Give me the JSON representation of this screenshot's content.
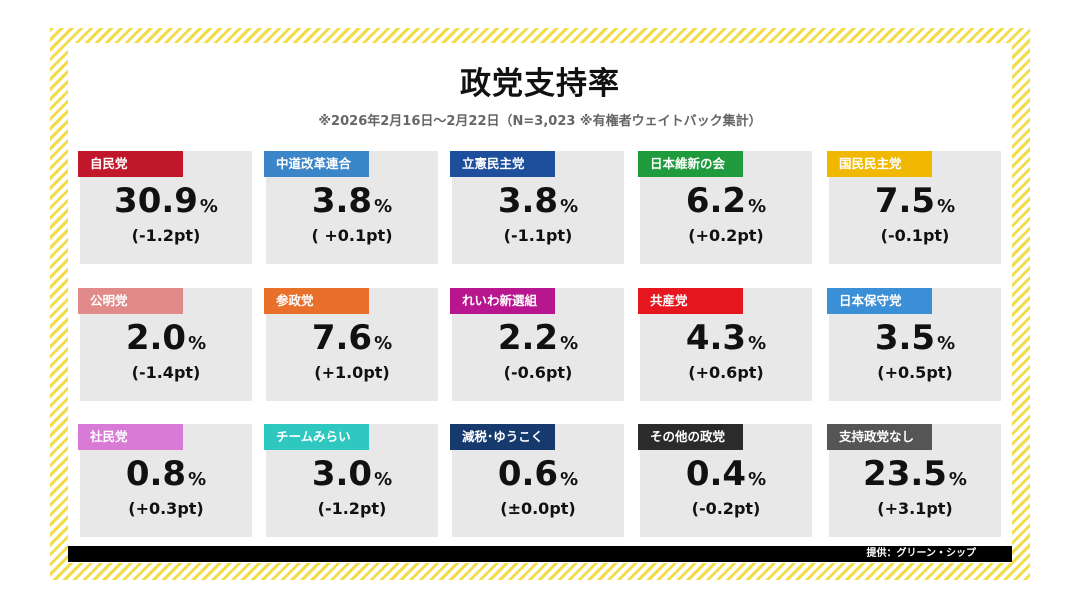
{
  "chart_data": {
    "type": "table",
    "title": "政党支持率",
    "subtitle": "※2026年2月16日～2月22日（N=3,023 ※有権者ウェイトバック集計）",
    "unit": "%",
    "entries": [
      {
        "party": "自民党",
        "value": 30.9,
        "value_text": "30.9",
        "change": "(-1.2pt)",
        "color": "#c0172a"
      },
      {
        "party": "中道改革連合",
        "value": 3.8,
        "value_text": "3.8",
        "change": "( +0.1pt)",
        "color": "#3a86c8"
      },
      {
        "party": "立憲民主党",
        "value": 3.8,
        "value_text": "3.8",
        "change": "(-1.1pt)",
        "color": "#1d4f9c"
      },
      {
        "party": "日本維新の会",
        "value": 6.2,
        "value_text": "6.2",
        "change": "(+0.2pt)",
        "color": "#1f9a3d"
      },
      {
        "party": "国民民主党",
        "value": 7.5,
        "value_text": "7.5",
        "change": "(-0.1pt)",
        "color": "#f0b800"
      },
      {
        "party": "公明党",
        "value": 2.0,
        "value_text": "2.0",
        "change": "(-1.4pt)",
        "color": "#e08a8a"
      },
      {
        "party": "参政党",
        "value": 7.6,
        "value_text": "7.6",
        "change": "(+1.0pt)",
        "color": "#e8702a"
      },
      {
        "party": "れいわ新選組",
        "value": 2.2,
        "value_text": "2.2",
        "change": "(-0.6pt)",
        "color": "#b8168e"
      },
      {
        "party": "共産党",
        "value": 4.3,
        "value_text": "4.3",
        "change": "(+0.6pt)",
        "color": "#e6161e"
      },
      {
        "party": "日本保守党",
        "value": 3.5,
        "value_text": "3.5",
        "change": "(+0.5pt)",
        "color": "#3b8fd6"
      },
      {
        "party": "社民党",
        "value": 0.8,
        "value_text": "0.8",
        "change": "(+0.3pt)",
        "color": "#d97ad6"
      },
      {
        "party": "チームみらい",
        "value": 3.0,
        "value_text": "3.0",
        "change": "(-1.2pt)",
        "color": "#2ec8c0"
      },
      {
        "party": "減税･ゆうこく",
        "value": 0.6,
        "value_text": "0.6",
        "change": "(±0.0pt)",
        "color": "#173a6e"
      },
      {
        "party": "その他の政党",
        "value": 0.4,
        "value_text": "0.4",
        "change": "(-0.2pt)",
        "color": "#2b2b2b"
      },
      {
        "party": "支持政党なし",
        "value": 23.5,
        "value_text": "23.5",
        "change": "(+3.1pt)",
        "color": "#555555"
      }
    ]
  },
  "footer": {
    "credit": "提供：グリーン・シップ"
  }
}
